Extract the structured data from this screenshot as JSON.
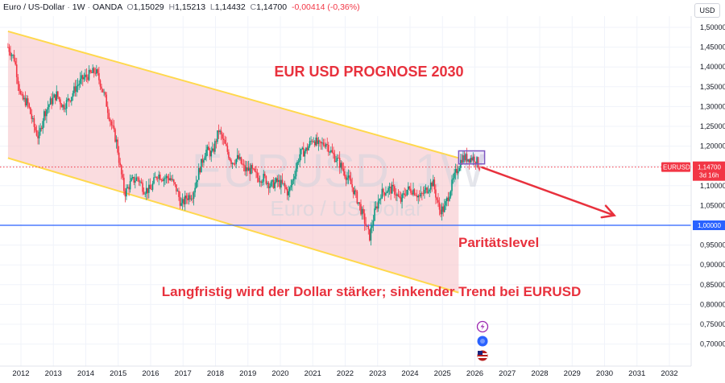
{
  "header": {
    "symbol": "Euro / US-Dollar",
    "interval": "1W",
    "exchange": "OANDA",
    "open_label": "O",
    "open": "1,15029",
    "high_label": "H",
    "high": "1,15213",
    "low_label": "L",
    "low": "1,14432",
    "close_label": "C",
    "close": "1,14700",
    "change": "-0,00414 (-0,36%)"
  },
  "currency": "USD",
  "watermark": {
    "ticker": "EURUSD, 1W",
    "name": "Euro / US-Dollar"
  },
  "annotations": {
    "title": "EUR USD PROGNOSE 2030",
    "parity": "Paritätslevel",
    "note": "Langfristig wird der Dollar stärker; sinkender Trend bei EURUSD"
  },
  "price_tag": {
    "symbol": "EURUSD",
    "price": "1,14700",
    "countdown": "3d 16h"
  },
  "parity_tag": "1,00000",
  "colors": {
    "up": "#089981",
    "down": "#f23645",
    "channel_fill": "#f7c5c9",
    "channel_line": "#ffd84d",
    "parity_line": "#2962ff",
    "arrow": "#e8313d",
    "box": "#7e57c2"
  },
  "icons": [
    "lightning-icon",
    "blue-dot-icon",
    "flag-icon"
  ],
  "chart_data": {
    "type": "candlestick",
    "y_ticks": [
      "1,50000",
      "1,45000",
      "1,40000",
      "1,35000",
      "1,30000",
      "1,25000",
      "1,20000",
      "1,15000",
      "1,10000",
      "1,05000",
      "1,00000",
      "0,95000",
      "0,90000",
      "0,85000",
      "0,80000",
      "0,75000",
      "0,70000"
    ],
    "x_ticks": [
      "2012",
      "2013",
      "2014",
      "2015",
      "2016",
      "2017",
      "2018",
      "2019",
      "2020",
      "2021",
      "2022",
      "2023",
      "2024",
      "2025",
      "2026",
      "2027",
      "2028",
      "2029",
      "2030",
      "2031",
      "2032"
    ],
    "ylim": [
      0.68,
      1.53
    ],
    "xlim": [
      2011.6,
      2032.6
    ],
    "current_price": 1.147,
    "parity_level": 1.0,
    "series": [
      {
        "x": [
          2011.6,
          2011.8,
          2012.0,
          2012.2,
          2012.4,
          2012.55,
          2012.7,
          2012.9,
          2013.1,
          2013.3,
          2013.5,
          2013.7,
          2013.9,
          2014.1,
          2014.3,
          2014.45,
          2014.6,
          2014.8,
          2014.95,
          2015.05,
          2015.2,
          2015.4,
          2015.6,
          2015.8,
          2016.0,
          2016.2,
          2016.4,
          2016.6,
          2016.8,
          2016.95,
          2017.1,
          2017.3,
          2017.5,
          2017.7,
          2017.9,
          2018.1,
          2018.3,
          2018.5,
          2018.7,
          2018.9,
          2019.1,
          2019.3,
          2019.5,
          2019.7,
          2019.9,
          2020.1,
          2020.25,
          2020.4,
          2020.6,
          2020.8,
          2021.0,
          2021.2,
          2021.4,
          2021.6,
          2021.8,
          2022.0,
          2022.2,
          2022.4,
          2022.6,
          2022.75,
          2022.9,
          2023.1,
          2023.3,
          2023.5,
          2023.7,
          2023.9,
          2024.1,
          2024.3,
          2024.5,
          2024.7,
          2024.9,
          2025.05,
          2025.2,
          2025.4,
          2025.6,
          2025.8,
          2026.0,
          2026.15
        ],
        "y": [
          1.45,
          1.42,
          1.32,
          1.31,
          1.25,
          1.22,
          1.28,
          1.31,
          1.33,
          1.3,
          1.32,
          1.35,
          1.37,
          1.38,
          1.39,
          1.36,
          1.32,
          1.25,
          1.21,
          1.15,
          1.08,
          1.11,
          1.12,
          1.09,
          1.09,
          1.13,
          1.12,
          1.12,
          1.09,
          1.05,
          1.07,
          1.08,
          1.14,
          1.19,
          1.18,
          1.24,
          1.2,
          1.16,
          1.17,
          1.14,
          1.14,
          1.12,
          1.12,
          1.1,
          1.11,
          1.1,
          1.08,
          1.12,
          1.18,
          1.19,
          1.22,
          1.2,
          1.21,
          1.18,
          1.16,
          1.13,
          1.1,
          1.06,
          1.01,
          0.97,
          1.03,
          1.08,
          1.09,
          1.09,
          1.06,
          1.09,
          1.09,
          1.07,
          1.09,
          1.11,
          1.04,
          1.04,
          1.08,
          1.13,
          1.17,
          1.17,
          1.17,
          1.147
        ]
      }
    ],
    "channel": {
      "upper": [
        [
          2011.6,
          1.49
        ],
        [
          2025.5,
          1.17
        ]
      ],
      "lower": [
        [
          2011.6,
          1.17
        ],
        [
          2025.5,
          0.83
        ]
      ]
    },
    "forecast_arrow": [
      [
        2026.2,
        1.147
      ],
      [
        2030.3,
        1.025
      ]
    ]
  }
}
